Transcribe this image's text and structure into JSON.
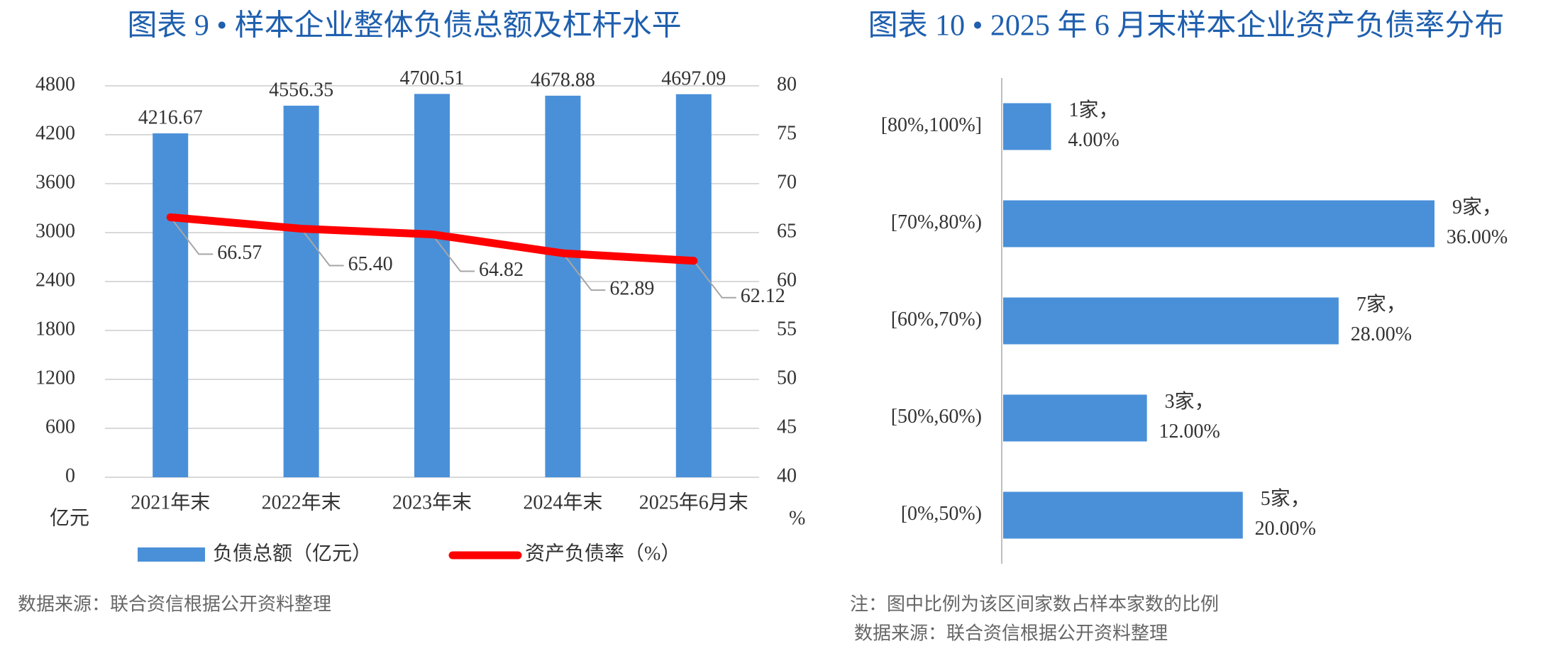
{
  "chart_data": [
    {
      "type": "combo",
      "title": "图表 9 • 样本企业整体负债总额及杠杆水平",
      "categories": [
        "2021年末",
        "2022年末",
        "2023年末",
        "2024年末",
        "2025年6月末"
      ],
      "series": [
        {
          "name": "负债总额（亿元）",
          "type": "bar",
          "color": "#4a90d9",
          "values": [
            4216.67,
            4556.35,
            4700.51,
            4678.88,
            4697.09
          ]
        },
        {
          "name": "资产负债率（%）",
          "type": "line",
          "axis": "y2",
          "color": "#ff0000",
          "values": [
            66.57,
            65.4,
            64.82,
            62.89,
            62.12
          ],
          "value_labels": [
            "66.57",
            "65.40",
            "64.82",
            "62.89",
            "62.12"
          ]
        }
      ],
      "ylim": [
        0,
        4800
      ],
      "yticks": [
        0,
        600,
        1200,
        1800,
        2400,
        3000,
        3600,
        4200,
        4800
      ],
      "y2lim": [
        40,
        80
      ],
      "y2ticks": [
        40,
        45,
        50,
        55,
        60,
        65,
        70,
        75,
        80
      ],
      "y_label": "亿元",
      "y2_label": "%",
      "grid": true,
      "source": "数据来源：联合资信根据公开资料整理"
    },
    {
      "type": "barh",
      "title": "图表 10 • 2025 年 6 月末样本企业资产负债率分布",
      "categories": [
        "[80%,100%]",
        "[70%,80%)",
        "[60%,70%)",
        "[50%,60%)",
        "[0%,50%)"
      ],
      "values": [
        4,
        36,
        28,
        12,
        20
      ],
      "value_labels": [
        "4.00%",
        "36.00%",
        "28.00%",
        "12.00%",
        "20.00%"
      ],
      "count_labels": [
        "1家，",
        "9家，",
        "7家，",
        "3家，",
        "5家，"
      ],
      "color": "#4a90d9",
      "note": "注：图中比例为该区间家数占样本家数的比例",
      "source": "数据来源：联合资信根据公开资料整理"
    }
  ]
}
